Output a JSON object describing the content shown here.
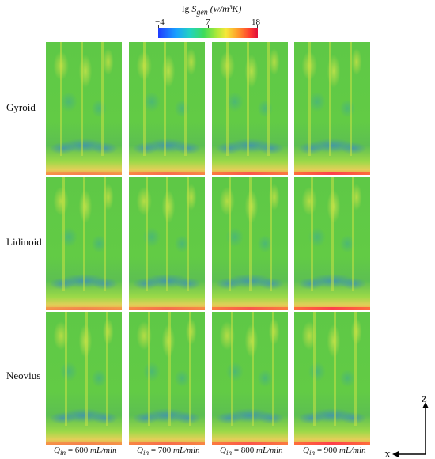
{
  "colorbar": {
    "title_prefix": "lg",
    "title_symbol": "S",
    "title_subscript": "gen",
    "title_unit": "(w/m³K)",
    "min_label": "−4",
    "mid_label": "7",
    "max_label": "18"
  },
  "rows": [
    {
      "label": "Gyroid"
    },
    {
      "label": "Lidinoid"
    },
    {
      "label": "Neovius"
    }
  ],
  "columns": [
    {
      "prefix": "Q",
      "subscript": "in",
      "value": "= 600",
      "unit": "mL/min"
    },
    {
      "prefix": "Q",
      "subscript": "in",
      "value": "= 700",
      "unit": "mL/min"
    },
    {
      "prefix": "Q",
      "subscript": "in",
      "value": "= 800",
      "unit": "mL/min"
    },
    {
      "prefix": "Q",
      "subscript": "in",
      "value": "= 900",
      "unit": "mL/min"
    }
  ],
  "axes": {
    "z_label": "Z",
    "x_label": "X"
  }
}
